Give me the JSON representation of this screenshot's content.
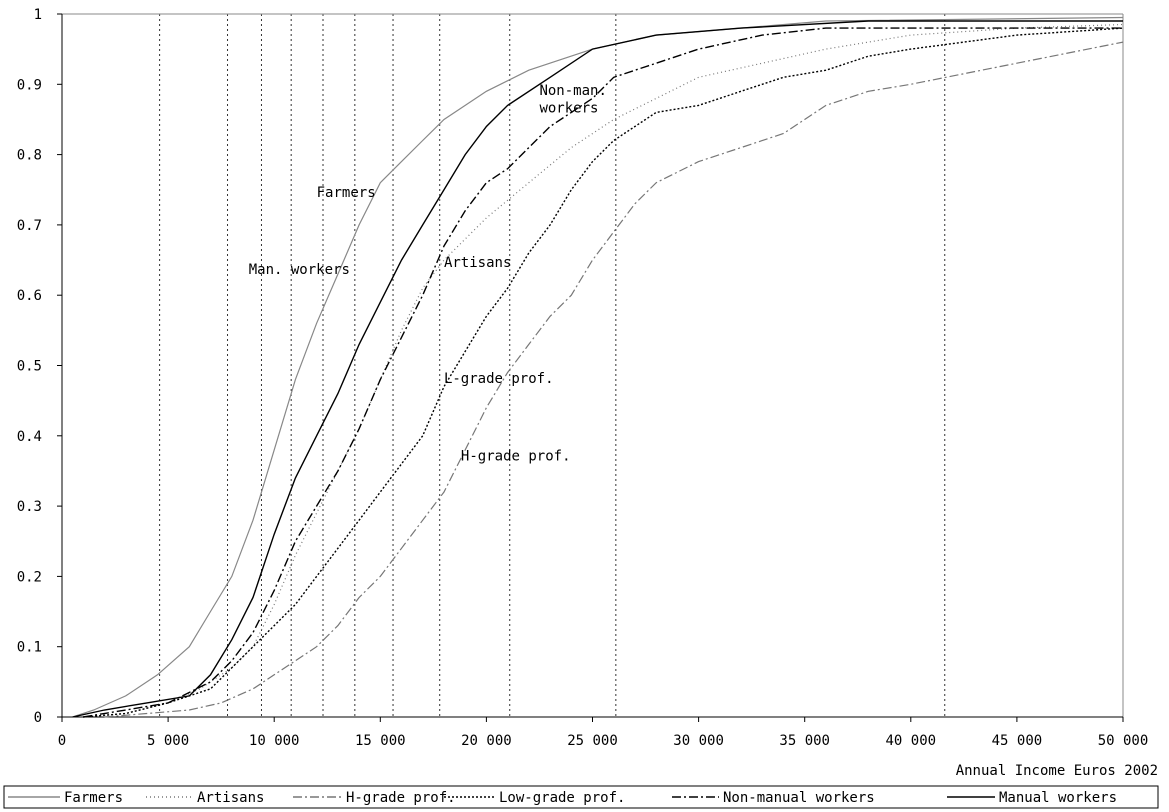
{
  "chart_data": {
    "type": "line",
    "title": "",
    "xlabel": "Annual Income Euros 2002",
    "ylabel": "",
    "xlim": [
      0,
      50000
    ],
    "ylim": [
      0,
      1
    ],
    "x_ticks": [
      0,
      5000,
      10000,
      15000,
      20000,
      25000,
      30000,
      35000,
      40000,
      45000,
      50000
    ],
    "x_tick_labels": [
      "0",
      "5 000",
      "10 000",
      "15 000",
      "20 000",
      "25 000",
      "30 000",
      "35 000",
      "40 000",
      "45 000",
      "50 000"
    ],
    "y_ticks": [
      0,
      0.1,
      0.2,
      0.3,
      0.4,
      0.5,
      0.6,
      0.7,
      0.8,
      0.9,
      1
    ],
    "y_tick_labels": [
      "0",
      "0.1",
      "0.2",
      "0.3",
      "0.4",
      "0.5",
      "0.6",
      "0.7",
      "0.8",
      "0.9",
      "1"
    ],
    "vertical_reference_lines": [
      4600,
      7800,
      9400,
      10800,
      12300,
      13800,
      15600,
      17800,
      21100,
      26100,
      41600
    ],
    "grid": false,
    "legend_position": "bottom",
    "series": [
      {
        "name": "Farmers",
        "color": "#888888",
        "dash": "solid",
        "points": [
          [
            500,
            0
          ],
          [
            1500,
            0.01
          ],
          [
            3000,
            0.03
          ],
          [
            4500,
            0.06
          ],
          [
            6000,
            0.1
          ],
          [
            7000,
            0.15
          ],
          [
            8000,
            0.2
          ],
          [
            9000,
            0.28
          ],
          [
            10000,
            0.38
          ],
          [
            11000,
            0.48
          ],
          [
            12000,
            0.56
          ],
          [
            13000,
            0.63
          ],
          [
            14000,
            0.7
          ],
          [
            15000,
            0.76
          ],
          [
            16000,
            0.79
          ],
          [
            17000,
            0.82
          ],
          [
            18000,
            0.85
          ],
          [
            19000,
            0.87
          ],
          [
            20000,
            0.89
          ],
          [
            22000,
            0.92
          ],
          [
            25000,
            0.95
          ],
          [
            28000,
            0.97
          ],
          [
            32000,
            0.98
          ],
          [
            36000,
            0.99
          ],
          [
            50000,
            0.995
          ]
        ]
      },
      {
        "name": "Artisans",
        "color": "#777777",
        "dash": "dotted",
        "points": [
          [
            1000,
            0
          ],
          [
            3000,
            0.005
          ],
          [
            5000,
            0.02
          ],
          [
            6500,
            0.04
          ],
          [
            8000,
            0.07
          ],
          [
            9000,
            0.1
          ],
          [
            10000,
            0.16
          ],
          [
            11000,
            0.23
          ],
          [
            12000,
            0.29
          ],
          [
            13000,
            0.35
          ],
          [
            14000,
            0.41
          ],
          [
            15000,
            0.48
          ],
          [
            16000,
            0.55
          ],
          [
            17000,
            0.61
          ],
          [
            18000,
            0.65
          ],
          [
            19000,
            0.68
          ],
          [
            20000,
            0.71
          ],
          [
            22000,
            0.76
          ],
          [
            24000,
            0.81
          ],
          [
            26000,
            0.85
          ],
          [
            28000,
            0.88
          ],
          [
            30000,
            0.91
          ],
          [
            33000,
            0.93
          ],
          [
            36000,
            0.95
          ],
          [
            40000,
            0.97
          ],
          [
            45000,
            0.98
          ],
          [
            50000,
            0.985
          ]
        ]
      },
      {
        "name": "H-grade prof.",
        "color": "#777777",
        "dash": "dashdot",
        "points": [
          [
            2000,
            0
          ],
          [
            4000,
            0.005
          ],
          [
            6000,
            0.01
          ],
          [
            7500,
            0.02
          ],
          [
            9000,
            0.04
          ],
          [
            10000,
            0.06
          ],
          [
            11000,
            0.08
          ],
          [
            12000,
            0.1
          ],
          [
            13000,
            0.13
          ],
          [
            14000,
            0.17
          ],
          [
            15000,
            0.2
          ],
          [
            16000,
            0.24
          ],
          [
            17000,
            0.28
          ],
          [
            18000,
            0.32
          ],
          [
            19000,
            0.38
          ],
          [
            20000,
            0.44
          ],
          [
            21000,
            0.49
          ],
          [
            22000,
            0.53
          ],
          [
            23000,
            0.57
          ],
          [
            24000,
            0.6
          ],
          [
            25000,
            0.65
          ],
          [
            26000,
            0.69
          ],
          [
            27000,
            0.73
          ],
          [
            28000,
            0.76
          ],
          [
            30000,
            0.79
          ],
          [
            32000,
            0.81
          ],
          [
            34000,
            0.83
          ],
          [
            36000,
            0.87
          ],
          [
            38000,
            0.89
          ],
          [
            40000,
            0.9
          ],
          [
            45000,
            0.93
          ],
          [
            50000,
            0.96
          ]
        ]
      },
      {
        "name": "Low-grade prof.",
        "color": "#000000",
        "dash": "dotted-dense",
        "points": [
          [
            1000,
            0
          ],
          [
            3000,
            0.005
          ],
          [
            5000,
            0.02
          ],
          [
            7000,
            0.04
          ],
          [
            8000,
            0.07
          ],
          [
            9000,
            0.1
          ],
          [
            10000,
            0.13
          ],
          [
            11000,
            0.16
          ],
          [
            12000,
            0.2
          ],
          [
            13000,
            0.24
          ],
          [
            14000,
            0.28
          ],
          [
            15000,
            0.32
          ],
          [
            16000,
            0.36
          ],
          [
            17000,
            0.4
          ],
          [
            18000,
            0.47
          ],
          [
            19000,
            0.52
          ],
          [
            20000,
            0.57
          ],
          [
            21000,
            0.61
          ],
          [
            22000,
            0.66
          ],
          [
            23000,
            0.7
          ],
          [
            24000,
            0.75
          ],
          [
            25000,
            0.79
          ],
          [
            26000,
            0.82
          ],
          [
            27000,
            0.84
          ],
          [
            28000,
            0.86
          ],
          [
            30000,
            0.87
          ],
          [
            32000,
            0.89
          ],
          [
            34000,
            0.91
          ],
          [
            36000,
            0.92
          ],
          [
            38000,
            0.94
          ],
          [
            40000,
            0.95
          ],
          [
            45000,
            0.97
          ],
          [
            50000,
            0.98
          ]
        ]
      },
      {
        "name": "Non-manual workers",
        "color": "#000000",
        "dash": "dashdot",
        "points": [
          [
            1000,
            0
          ],
          [
            3000,
            0.01
          ],
          [
            5000,
            0.02
          ],
          [
            7000,
            0.05
          ],
          [
            8000,
            0.08
          ],
          [
            9000,
            0.12
          ],
          [
            10000,
            0.18
          ],
          [
            11000,
            0.25
          ],
          [
            12000,
            0.3
          ],
          [
            13000,
            0.35
          ],
          [
            14000,
            0.41
          ],
          [
            15000,
            0.48
          ],
          [
            16000,
            0.54
          ],
          [
            17000,
            0.6
          ],
          [
            18000,
            0.67
          ],
          [
            19000,
            0.72
          ],
          [
            20000,
            0.76
          ],
          [
            21000,
            0.78
          ],
          [
            22000,
            0.81
          ],
          [
            23000,
            0.84
          ],
          [
            24000,
            0.86
          ],
          [
            25000,
            0.88
          ],
          [
            26000,
            0.91
          ],
          [
            28000,
            0.93
          ],
          [
            30000,
            0.95
          ],
          [
            33000,
            0.97
          ],
          [
            36000,
            0.98
          ],
          [
            40000,
            0.98
          ],
          [
            50000,
            0.98
          ]
        ]
      },
      {
        "name": "Manual workers",
        "color": "#000000",
        "dash": "solid",
        "points": [
          [
            500,
            0
          ],
          [
            2000,
            0.01
          ],
          [
            4000,
            0.02
          ],
          [
            6000,
            0.03
          ],
          [
            7000,
            0.06
          ],
          [
            8000,
            0.11
          ],
          [
            9000,
            0.17
          ],
          [
            10000,
            0.26
          ],
          [
            11000,
            0.34
          ],
          [
            12000,
            0.4
          ],
          [
            13000,
            0.46
          ],
          [
            14000,
            0.53
          ],
          [
            15000,
            0.59
          ],
          [
            16000,
            0.65
          ],
          [
            17000,
            0.7
          ],
          [
            18000,
            0.75
          ],
          [
            19000,
            0.8
          ],
          [
            20000,
            0.84
          ],
          [
            21000,
            0.87
          ],
          [
            23000,
            0.91
          ],
          [
            25000,
            0.95
          ],
          [
            28000,
            0.97
          ],
          [
            32000,
            0.98
          ],
          [
            38000,
            0.99
          ],
          [
            50000,
            0.99
          ]
        ]
      }
    ],
    "annotations": [
      {
        "text": "Farmers",
        "x": 12000,
        "y": 0.74
      },
      {
        "text": "Man. workers",
        "x": 8800,
        "y": 0.63
      },
      {
        "text": "Non-man.",
        "x": 22500,
        "y": 0.885
      },
      {
        "text": "workers",
        "x": 22500,
        "y": 0.86
      },
      {
        "text": "Artisans",
        "x": 18000,
        "y": 0.64
      },
      {
        "text": "L-grade prof.",
        "x": 18000,
        "y": 0.475
      },
      {
        "text": "H-grade prof.",
        "x": 18800,
        "y": 0.365
      }
    ]
  }
}
